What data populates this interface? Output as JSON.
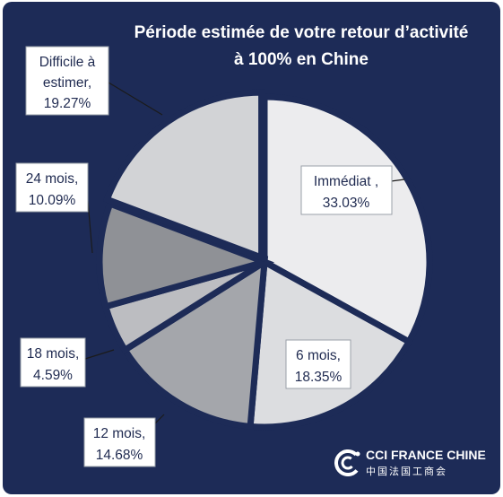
{
  "chart_data": {
    "type": "pie",
    "title": [
      "Période estimée de votre retour d’activité",
      "à 100% en Chine"
    ],
    "slices": [
      {
        "label": "Immédiat ,",
        "value": 33.03,
        "value_text": "33.03%",
        "color": "#ececee"
      },
      {
        "label": "6 mois,",
        "value": 18.35,
        "value_text": "18.35%",
        "color": "#dcdde0"
      },
      {
        "label": "12 mois,",
        "value": 14.68,
        "value_text": "14.68%",
        "color": "#a4a6ab"
      },
      {
        "label": "18 mois,",
        "value": 4.59,
        "value_text": "4.59%",
        "color": "#bcbdc1"
      },
      {
        "label": "24 mois,",
        "value": 10.09,
        "value_text": "10.09%",
        "color": "#8f9196"
      },
      {
        "label": "Difficile à estimer,",
        "value": 19.27,
        "value_text": "19.27%",
        "color": "#d2d3d6"
      }
    ],
    "legend": "none",
    "data_labels": "callouts"
  },
  "brand": {
    "name": "CCI FRANCE CHINE",
    "subtitle": "中国法国工商会",
    "logo_icon": "cci-logo-icon"
  },
  "colors": {
    "background": "#1d2b57",
    "title": "#ffffff",
    "label_text": "#1f2a50"
  }
}
